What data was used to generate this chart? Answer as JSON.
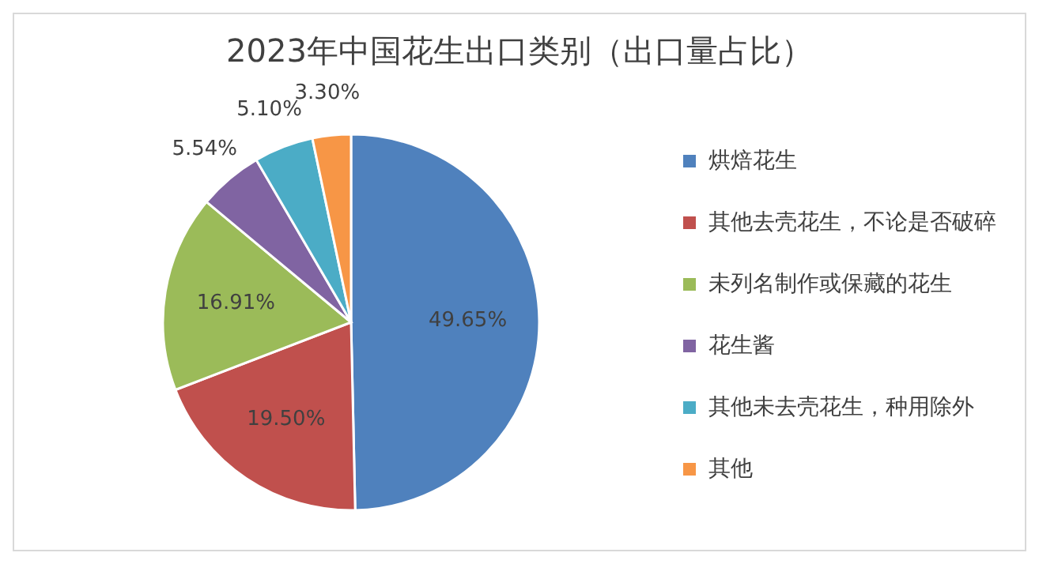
{
  "chart_data": {
    "type": "pie",
    "title": "2023年中国花生出口类别（出口量占比）",
    "categories": [
      "烘焙花生",
      "其他去壳花生，不论是否破碎",
      "未列名制作或保藏的花生",
      "花生酱",
      "其他未去壳花生，种用除外",
      "其他"
    ],
    "values": [
      49.65,
      19.5,
      16.91,
      5.54,
      5.1,
      3.3
    ],
    "colors": [
      "#4f81bd",
      "#c0504d",
      "#9bbb59",
      "#8064a2",
      "#4bacc6",
      "#f79646"
    ],
    "value_labels": [
      "49.65%",
      "19.50%",
      "16.91%",
      "5.54%",
      "5.10%",
      "3.30%"
    ],
    "legend": "right"
  }
}
